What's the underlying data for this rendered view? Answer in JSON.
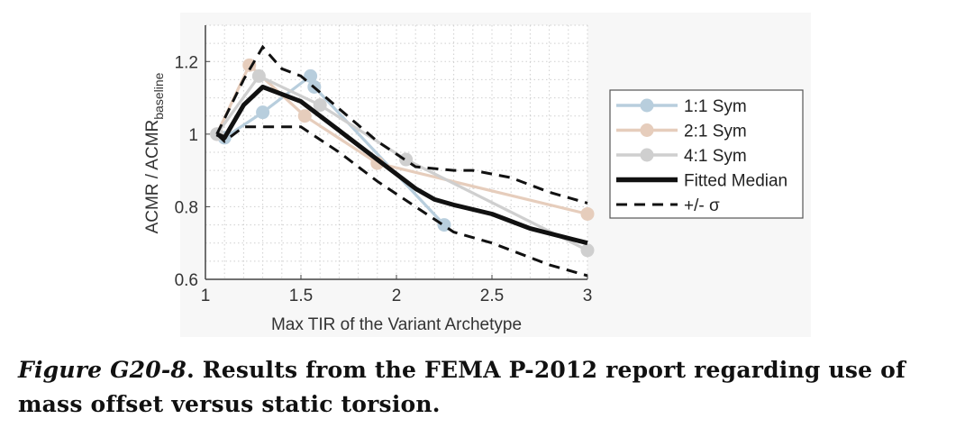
{
  "chart_data": {
    "type": "line",
    "xlabel": "Max TIR of the Variant Archetype",
    "ylabel_main": "ACMR / ACMR",
    "ylabel_sub": "baseline",
    "xlim": [
      1,
      3
    ],
    "ylim": [
      0.6,
      1.3
    ],
    "xticks": [
      1,
      1.5,
      2,
      2.5,
      3
    ],
    "xtick_labels": [
      "1",
      "1.5",
      "2",
      "2.5",
      "3"
    ],
    "yticks": [
      0.6,
      0.8,
      1.0,
      1.2
    ],
    "ytick_labels": [
      "0.6",
      "0.8",
      "1",
      "1.2"
    ],
    "grid": true,
    "legend_position": "right",
    "series": [
      {
        "name": "1:1 Sym",
        "color": "#b8cedd",
        "style": "solid-marker",
        "x": [
          1.06,
          1.1,
          1.3,
          1.55,
          1.57,
          2.25
        ],
        "y": [
          1.0,
          0.99,
          1.06,
          1.16,
          1.13,
          0.75
        ]
      },
      {
        "name": "2:1 Sym",
        "color": "#e6cdbc",
        "style": "solid-marker",
        "x": [
          1.06,
          1.23,
          1.52,
          1.9,
          3.0
        ],
        "y": [
          1.0,
          1.19,
          1.05,
          0.92,
          0.78
        ]
      },
      {
        "name": "4:1 Sym",
        "color": "#cfcfcf",
        "style": "solid-marker",
        "x": [
          1.06,
          1.28,
          1.6,
          2.05,
          3.0
        ],
        "y": [
          1.0,
          1.16,
          1.08,
          0.93,
          0.68
        ]
      },
      {
        "name": "Fitted Median",
        "color": "#111111",
        "style": "thick",
        "x": [
          1.06,
          1.1,
          1.2,
          1.3,
          1.5,
          1.7,
          1.9,
          2.1,
          2.2,
          2.3,
          2.5,
          2.7,
          3.0
        ],
        "y": [
          1.0,
          0.99,
          1.08,
          1.13,
          1.09,
          1.01,
          0.93,
          0.85,
          0.82,
          0.805,
          0.78,
          0.74,
          0.7
        ]
      },
      {
        "name": "+/- σ",
        "color": "#111111",
        "style": "dashed",
        "upper": {
          "x": [
            1.06,
            1.2,
            1.3,
            1.4,
            1.5,
            1.7,
            1.9,
            2.1,
            2.3,
            2.4,
            2.6,
            2.8,
            3.0
          ],
          "y": [
            1.0,
            1.15,
            1.24,
            1.18,
            1.16,
            1.07,
            0.98,
            0.91,
            0.9,
            0.9,
            0.88,
            0.84,
            0.81
          ]
        },
        "lower": {
          "x": [
            1.06,
            1.1,
            1.2,
            1.3,
            1.5,
            1.7,
            1.9,
            2.1,
            2.3,
            2.5,
            2.8,
            3.0
          ],
          "y": [
            1.0,
            0.98,
            1.02,
            1.02,
            1.02,
            0.95,
            0.87,
            0.8,
            0.73,
            0.7,
            0.64,
            0.61
          ]
        }
      }
    ]
  },
  "caption": {
    "label": "Figure G20-8",
    "text": ". Results from the FEMA P-2012 report regarding use of mass offset versus static torsion."
  }
}
